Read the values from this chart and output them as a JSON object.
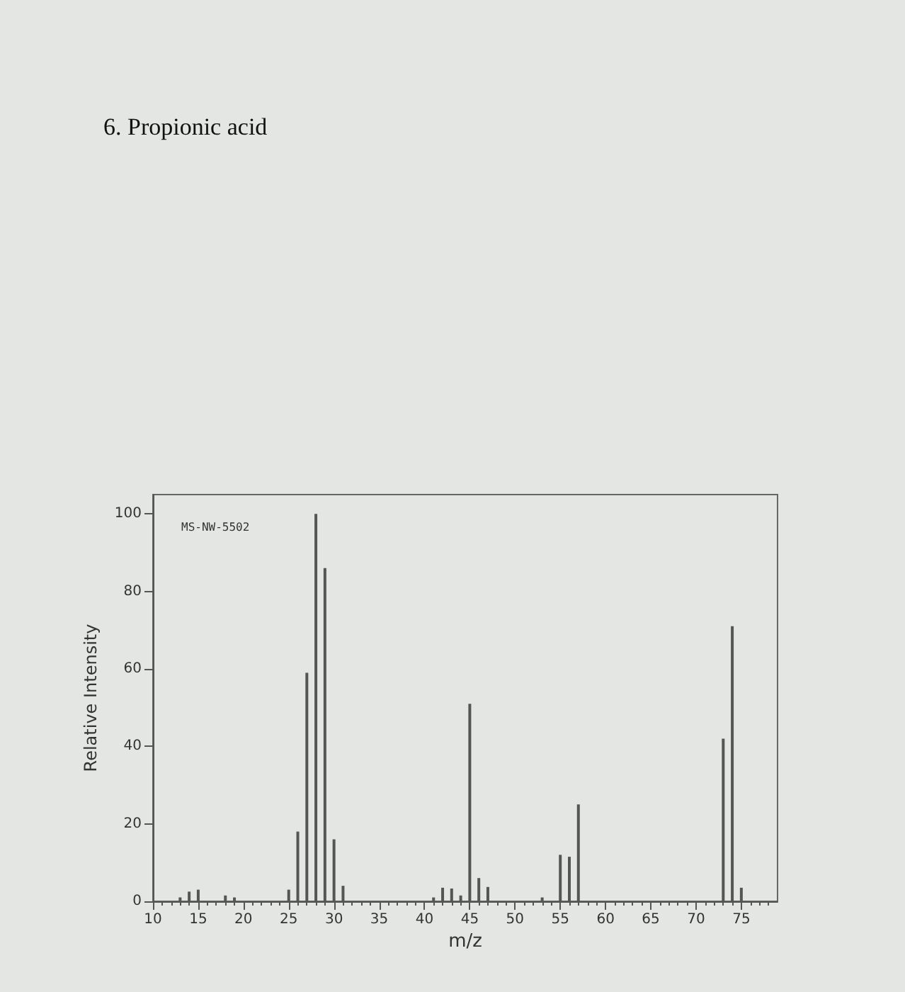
{
  "chart_data": {
    "type": "bar",
    "title": "6. Propionic acid",
    "xlabel": "m/z",
    "ylabel": "Relative Intensity",
    "annotations": [
      "MS-NW-5502"
    ],
    "x": [
      13,
      14,
      15,
      18,
      19,
      25,
      26,
      27,
      28,
      29,
      30,
      31,
      41,
      42,
      43,
      44,
      45,
      46,
      47,
      53,
      55,
      56,
      57,
      73,
      74,
      75
    ],
    "values": [
      1,
      2.5,
      3,
      1.5,
      1,
      3,
      18,
      59,
      100,
      86,
      16,
      4,
      1,
      3.5,
      3.3,
      1.5,
      51,
      6,
      3.7,
      1,
      12,
      11.5,
      25,
      42,
      71,
      3.5
    ],
    "color": "#555555",
    "xlim": [
      10,
      79
    ],
    "xticks": [
      10,
      15,
      20,
      25,
      30,
      35,
      40,
      45,
      50,
      55,
      60,
      65,
      70,
      75
    ],
    "ylim": [
      0,
      105
    ],
    "yticks": [
      0,
      20,
      40,
      60,
      80,
      100
    ],
    "grid": false
  }
}
